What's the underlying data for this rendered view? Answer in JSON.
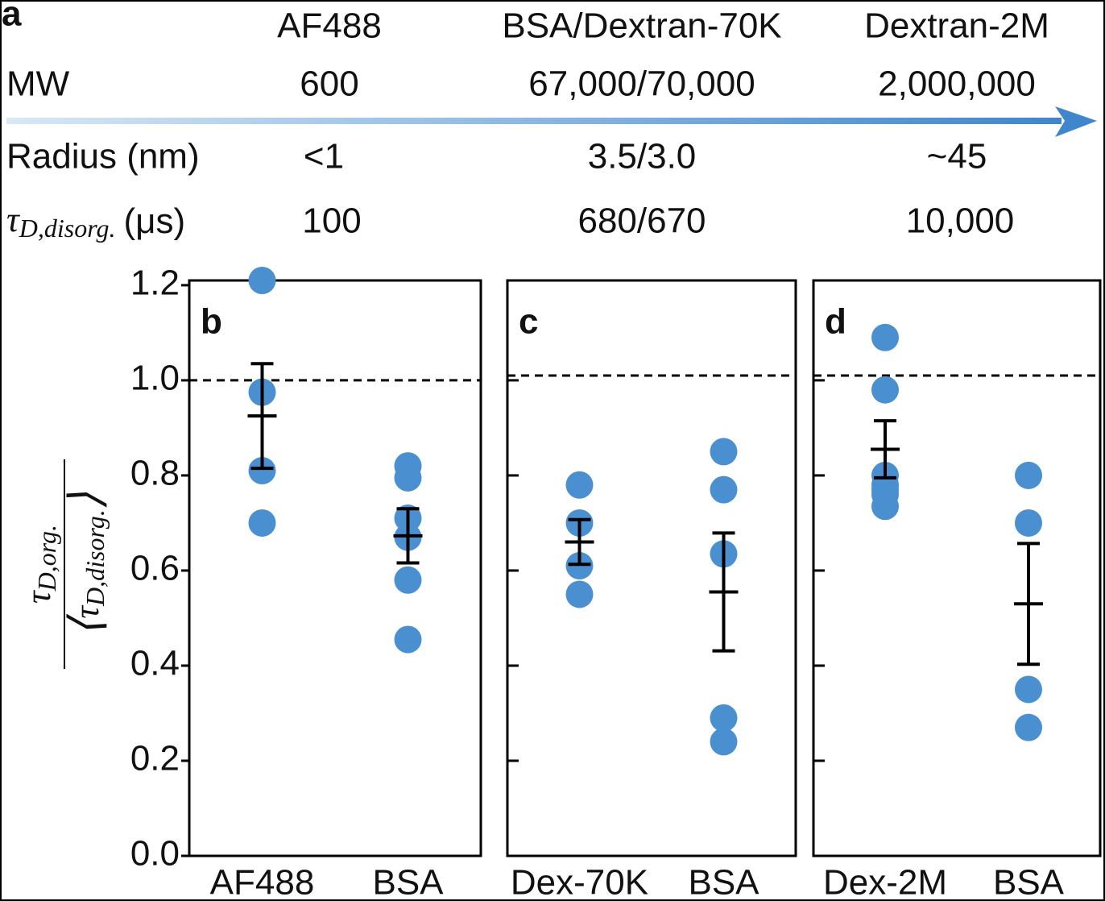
{
  "panel_a": {
    "label": "a",
    "columns": [
      "AF488",
      "BSA/Dextran-70K",
      "Dextran-2M"
    ],
    "rows": [
      {
        "label": "MW",
        "cells": [
          "600",
          "67,000/70,000",
          "2,000,000"
        ]
      },
      {
        "label": "Radius (nm)",
        "cells": [
          "<1",
          "3.5/3.0",
          "~45"
        ]
      },
      {
        "label": {
          "symbol": "τ",
          "sub": "D,disorg.",
          "unit": "(μs)"
        },
        "cells": [
          "100",
          "680/670",
          "10,000"
        ]
      }
    ]
  },
  "ylabel": {
    "numerator": {
      "symbol": "τ",
      "sub": "D,org."
    },
    "denominator": {
      "open": "⟨",
      "symbol": "τ",
      "sub": "D,disorg.",
      "close": "⟩"
    }
  },
  "chart_data": [
    {
      "type": "scatter",
      "panel_label": "b",
      "categories": [
        "AF488",
        "BSA"
      ],
      "color": "#4a90d0",
      "points": [
        [
          1.21,
          0.975,
          0.81,
          0.7
        ],
        [
          0.82,
          0.795,
          0.71,
          0.67,
          0.58,
          0.455
        ]
      ],
      "means": [
        0.925,
        0.673
      ],
      "errors": [
        0.11,
        0.057
      ],
      "ref_line": 1.0,
      "ylim": [
        0,
        1.21
      ],
      "yticks": [
        {
          "value": 0,
          "label": "0.0"
        },
        {
          "value": 0.2,
          "label": "0.2"
        },
        {
          "value": 0.4,
          "label": "0.4"
        },
        {
          "value": 0.6,
          "label": "0.6"
        },
        {
          "value": 0.8,
          "label": "0.8"
        },
        {
          "value": 1,
          "label": "1.0"
        },
        {
          "value": 1.2,
          "label": "1.2"
        }
      ]
    },
    {
      "type": "scatter",
      "panel_label": "c",
      "categories": [
        "Dex-70K",
        "BSA"
      ],
      "color": "#4a90d0",
      "points": [
        [
          0.78,
          0.7,
          0.61,
          0.55
        ],
        [
          0.85,
          0.77,
          0.635,
          0.29,
          0.24
        ]
      ],
      "means": [
        0.66,
        0.555
      ],
      "errors": [
        0.047,
        0.124
      ],
      "ref_line": 1.01,
      "ylim": [
        0,
        1.21
      ],
      "yticks": [
        0.2,
        0.4,
        0.6,
        0.8,
        1.0
      ]
    },
    {
      "type": "scatter",
      "panel_label": "d",
      "categories": [
        "Dex-2M",
        "BSA"
      ],
      "color": "#4a90d0",
      "points": [
        [
          1.09,
          0.98,
          0.8,
          0.78,
          0.77,
          0.76,
          0.735
        ],
        [
          0.8,
          0.7,
          0.35,
          0.27
        ]
      ],
      "means": [
        0.855,
        0.53
      ],
      "errors": [
        0.06,
        0.127
      ],
      "ref_line": 1.01,
      "ylim": [
        0,
        1.21
      ],
      "yticks": [
        0.2,
        0.4,
        0.6,
        0.8,
        1.0
      ]
    }
  ]
}
